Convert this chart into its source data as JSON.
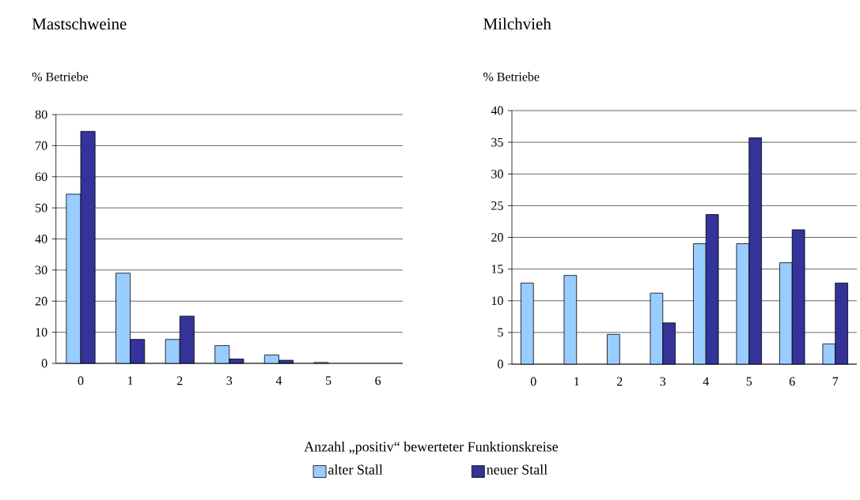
{
  "chart_data": [
    {
      "type": "bar",
      "title": "Mastschweine",
      "ylabel": "% Betriebe",
      "xlabel": "Anzahl „positiv“ bewerteter Funktionskreise",
      "categories": [
        "0",
        "1",
        "2",
        "3",
        "4",
        "5",
        "6"
      ],
      "series": [
        {
          "name": "alter Stall",
          "color": "#99ccff",
          "values": [
            54.4,
            29.0,
            7.7,
            5.7,
            2.7,
            0.3,
            null
          ]
        },
        {
          "name": "neuer Stall",
          "color": "#333399",
          "values": [
            74.6,
            7.7,
            15.2,
            1.4,
            1.0,
            null,
            null
          ]
        }
      ],
      "ylim": [
        0,
        80
      ],
      "yticks": [
        0,
        10,
        20,
        30,
        40,
        50,
        60,
        70,
        80
      ],
      "grid": "y",
      "legend": "bottom"
    },
    {
      "type": "bar",
      "title": "Milchvieh",
      "ylabel": "% Betriebe",
      "categories": [
        "0",
        "1",
        "2",
        "3",
        "4",
        "5",
        "6",
        "7"
      ],
      "series": [
        {
          "color": "#99ccff",
          "values": [
            12.8,
            14.0,
            4.7,
            11.2,
            19.0,
            19.0,
            16.0,
            3.2
          ]
        },
        {
          "color": "#333399",
          "values": [
            null,
            null,
            null,
            6.5,
            23.6,
            35.7,
            21.2,
            12.8
          ]
        }
      ],
      "ylim": [
        0,
        40
      ],
      "yticks": [
        0,
        5,
        10,
        15,
        20,
        25,
        30,
        35,
        40
      ],
      "grid": "y"
    }
  ]
}
